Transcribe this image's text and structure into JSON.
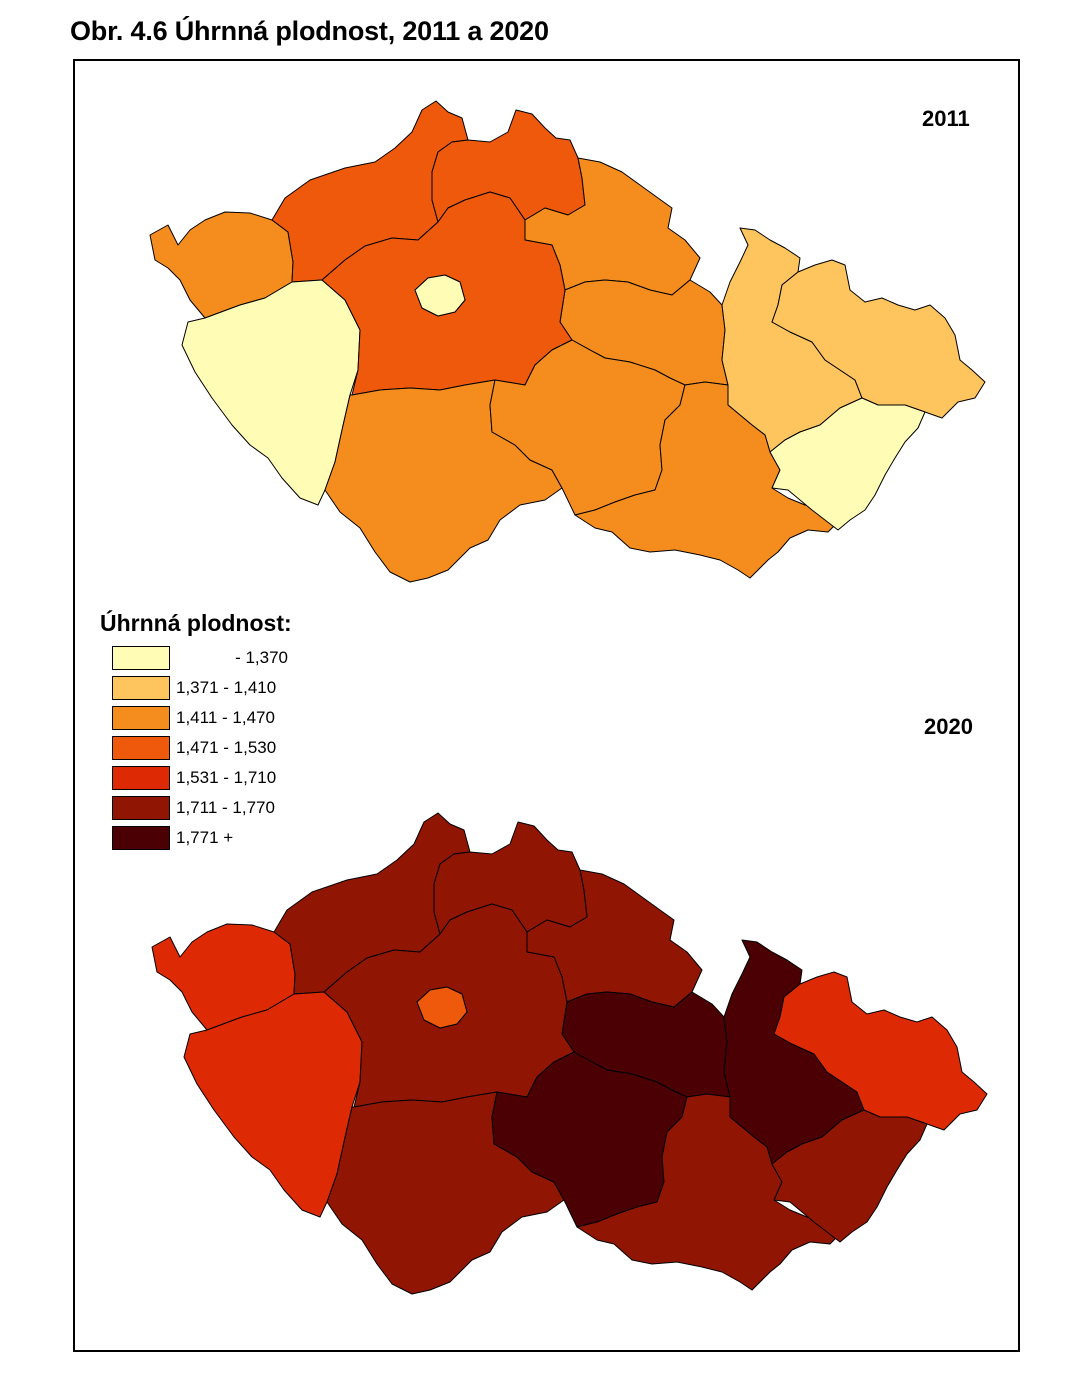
{
  "title": "Obr. 4.6 Úhrnná plodnost, 2011 a 2020",
  "legend": {
    "title": "Úhrnná plodnost:",
    "classes": [
      {
        "label": "- 1,370",
        "color": "#fffdb5"
      },
      {
        "label": "1,371 - 1,410",
        "color": "#fec45e"
      },
      {
        "label": "1,411 - 1,470",
        "color": "#f58d1e"
      },
      {
        "label": "1,471 - 1,530",
        "color": "#ee590b"
      },
      {
        "label": "1,531 - 1,710",
        "color": "#de2a04"
      },
      {
        "label": "1,711 - 1,770",
        "color": "#911503"
      },
      {
        "label": "1,771 +",
        "color": "#4b0104"
      }
    ]
  },
  "maps": [
    {
      "year_label": "2011",
      "regions": {
        "karlovarsky": "1,411 - 1,470",
        "ustecky": "1,471 - 1,530",
        "liberecky": "1,471 - 1,530",
        "kralovehradecky": "1,411 - 1,470",
        "pardubicky": "1,411 - 1,470",
        "olomoucky": "1,371 - 1,410",
        "moravskoslezsky": "1,371 - 1,410",
        "plzensky": "- 1,370",
        "praha": "- 1,370",
        "stredocesky": "1,471 - 1,530",
        "jihocesky": "1,411 - 1,470",
        "vysocina": "1,411 - 1,470",
        "jihomoravsky": "1,411 - 1,470",
        "zlinsky": "- 1,370"
      }
    },
    {
      "year_label": "2020",
      "regions": {
        "karlovarsky": "1,531 - 1,710",
        "ustecky": "1,711 - 1,770",
        "liberecky": "1,711 - 1,770",
        "kralovehradecky": "1,711 - 1,770",
        "pardubicky": "1,771 +",
        "olomoucky": "1,771 +",
        "moravskoslezsky": "1,531 - 1,710",
        "plzensky": "1,531 - 1,710",
        "praha": "1,471 - 1,530",
        "stredocesky": "1,711 - 1,770",
        "jihocesky": "1,711 - 1,770",
        "vysocina": "1,771 +",
        "jihomoravsky": "1,711 - 1,770",
        "zlinsky": "1,711 - 1,770"
      }
    }
  ]
}
